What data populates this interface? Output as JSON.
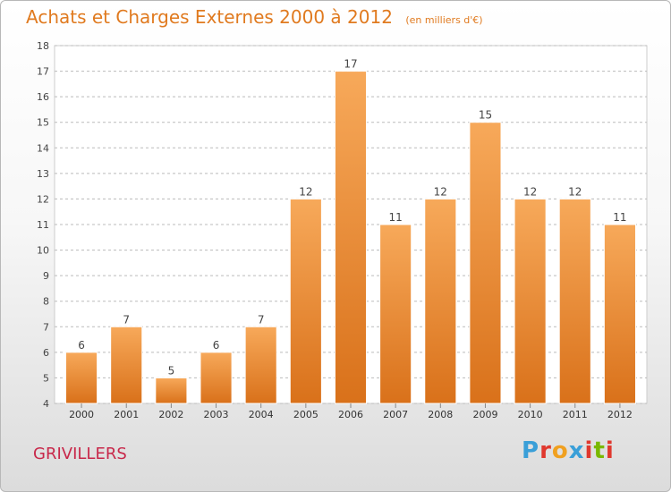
{
  "header": {
    "title": "Achats et Charges Externes 2000 à 2012",
    "subtitle": "(en milliers d'€)"
  },
  "footer": {
    "commune": "GRIVILLERS",
    "logo_letters": [
      "P",
      "r",
      "o",
      "x",
      "i",
      "t",
      "i"
    ],
    "logo_colors": [
      "#3a9fd8",
      "#e0382e",
      "#f0a020",
      "#3a9fd8",
      "#e0382e",
      "#7ab800",
      "#e0382e"
    ]
  },
  "chart_data": {
    "type": "bar",
    "categories": [
      "2000",
      "2001",
      "2002",
      "2003",
      "2004",
      "2005",
      "2006",
      "2007",
      "2008",
      "2009",
      "2010",
      "2011",
      "2012"
    ],
    "values": [
      6,
      7,
      5,
      6,
      7,
      12,
      17,
      11,
      12,
      15,
      12,
      12,
      11
    ],
    "ylim": [
      4,
      18
    ],
    "yticks": [
      4,
      5,
      6,
      7,
      8,
      9,
      10,
      11,
      12,
      13,
      14,
      15,
      16,
      17,
      18
    ],
    "grid": "horizontal-dashed",
    "bar_color_top": "#f7a95a",
    "bar_color_bottom": "#d9711a",
    "legend": "none"
  }
}
